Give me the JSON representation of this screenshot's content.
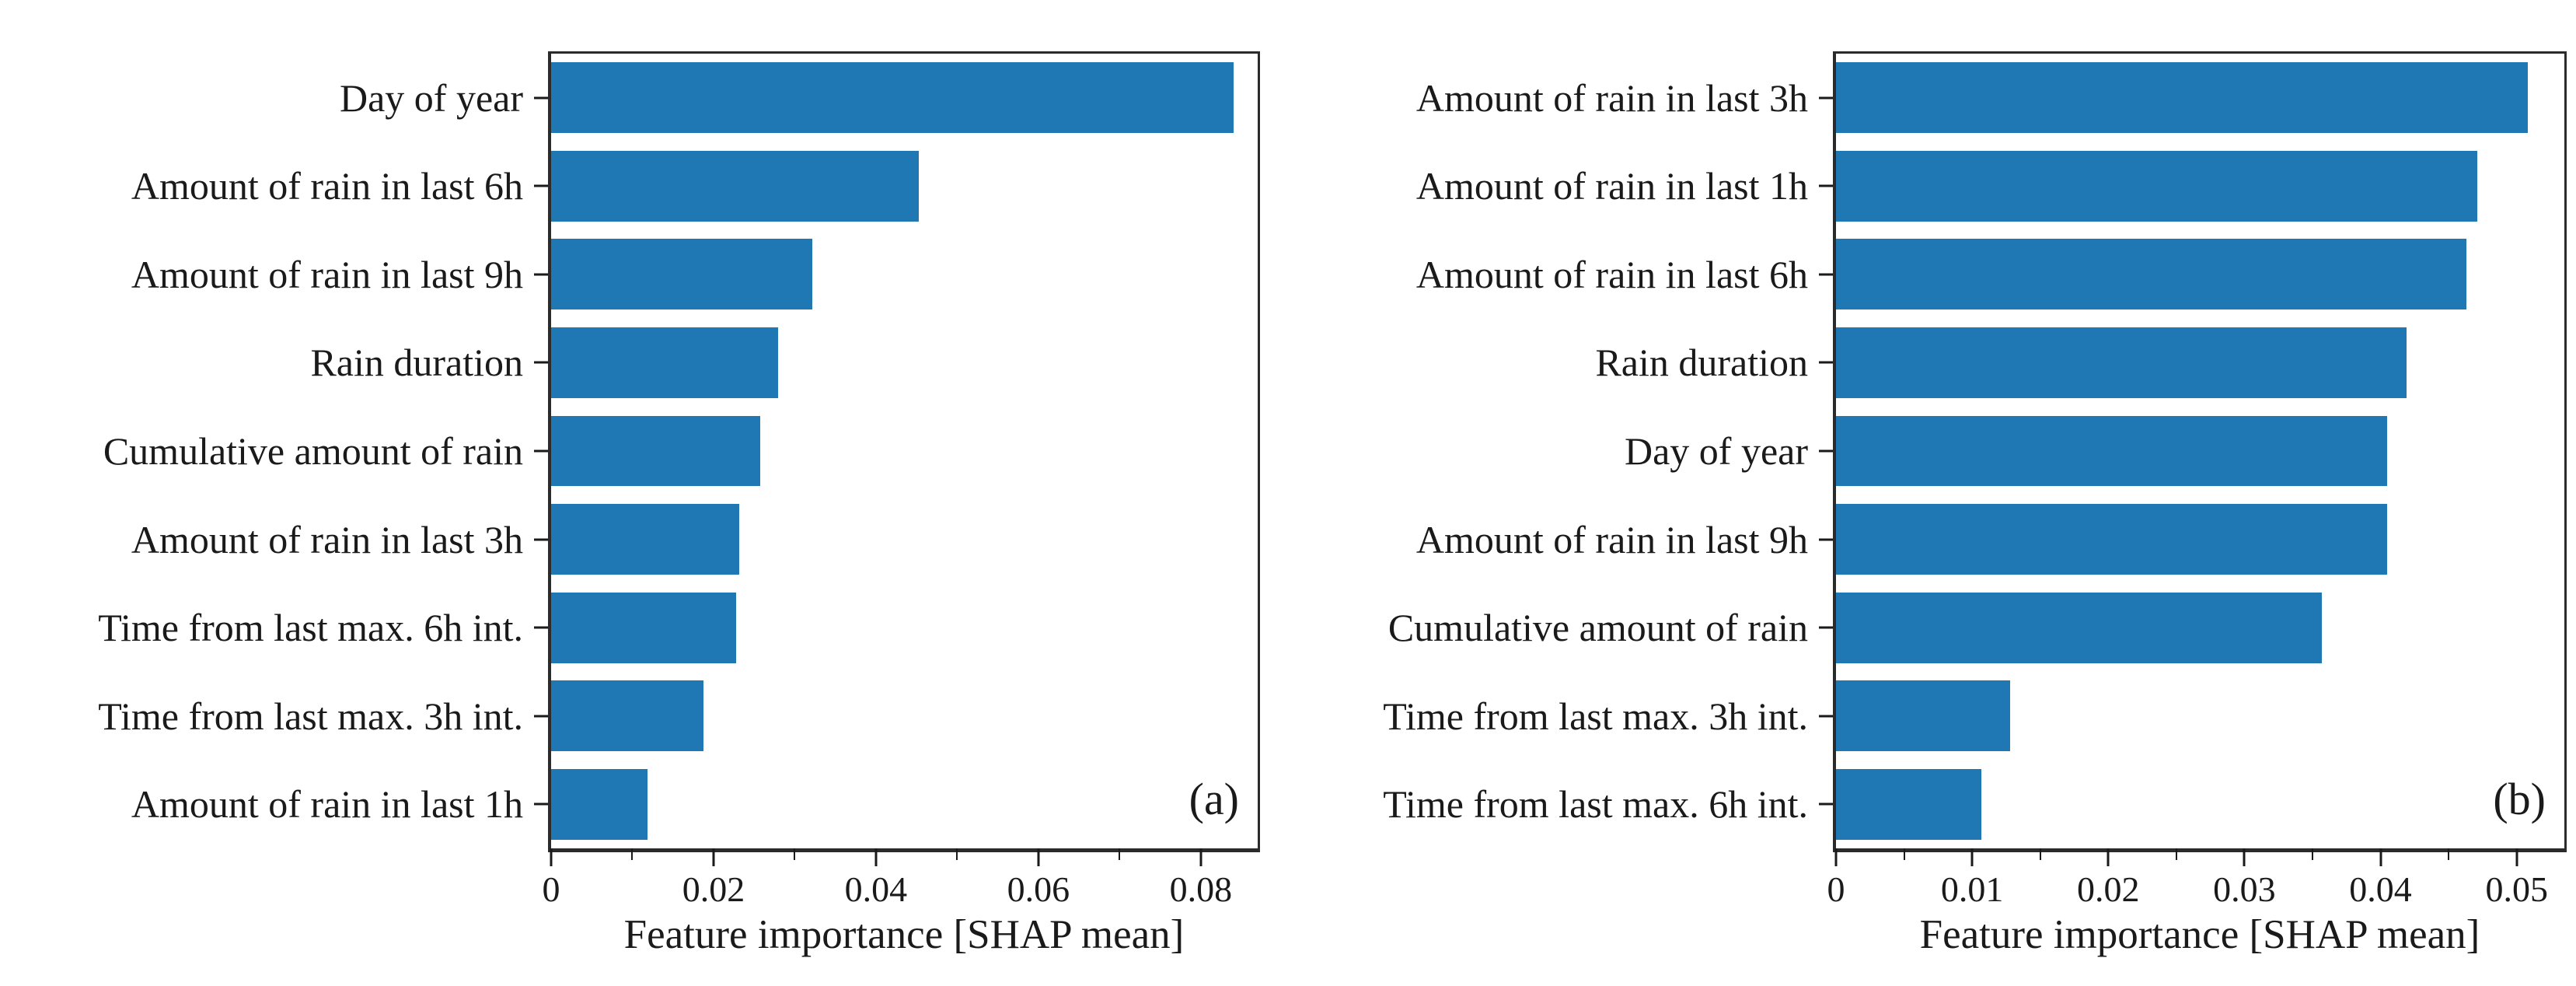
{
  "figure": {
    "background_color": "#ffffff",
    "text_color": "#1a1a1a",
    "spine_color": "#2b2b2b"
  },
  "chart_data": [
    {
      "type": "bar",
      "orientation": "horizontal",
      "panel_label": "(a)",
      "xlabel": "Feature importance [SHAP mean]",
      "ylabel": "",
      "categories": [
        "Day of year",
        "Amount of rain in last 6h",
        "Amount of rain in last 9h",
        "Rain duration",
        "Cumulative amount of rain",
        "Amount of rain in last 3h",
        "Time from last max. 6h int.",
        "Time from last max. 3h int.",
        "Amount of rain in last 1h"
      ],
      "values": [
        0.084,
        0.0453,
        0.0322,
        0.0279,
        0.0257,
        0.0232,
        0.0228,
        0.0188,
        0.0119
      ],
      "xlim": [
        0,
        0.087
      ],
      "xticks": [
        0,
        0.02,
        0.04,
        0.06,
        0.08
      ],
      "xtick_labels": [
        "0",
        "0.02",
        "0.04",
        "0.06",
        "0.08"
      ],
      "minor_xticks": [
        0.01,
        0.03,
        0.05,
        0.07
      ],
      "bar_color": "#1f77b4",
      "grid": false,
      "legend": null
    },
    {
      "type": "bar",
      "orientation": "horizontal",
      "panel_label": "(b)",
      "xlabel": "Feature importance [SHAP mean]",
      "ylabel": "",
      "categories": [
        "Amount of rain in last 3h",
        "Amount of rain in last 1h",
        "Amount of rain in last 6h",
        "Rain duration",
        "Day of year",
        "Amount of rain in last 9h",
        "Cumulative amount of rain",
        "Time from last max. 3h int.",
        "Time from last max. 6h int."
      ],
      "values": [
        0.0508,
        0.0471,
        0.0463,
        0.0419,
        0.0405,
        0.0405,
        0.0357,
        0.0128,
        0.0107
      ],
      "xlim": [
        0,
        0.0535
      ],
      "xticks": [
        0,
        0.01,
        0.02,
        0.03,
        0.04,
        0.05
      ],
      "xtick_labels": [
        "0",
        "0.01",
        "0.02",
        "0.03",
        "0.04",
        "0.05"
      ],
      "minor_xticks": [
        0.005,
        0.015,
        0.025,
        0.035,
        0.045
      ],
      "bar_color": "#1f77b4",
      "grid": false,
      "legend": null
    }
  ]
}
